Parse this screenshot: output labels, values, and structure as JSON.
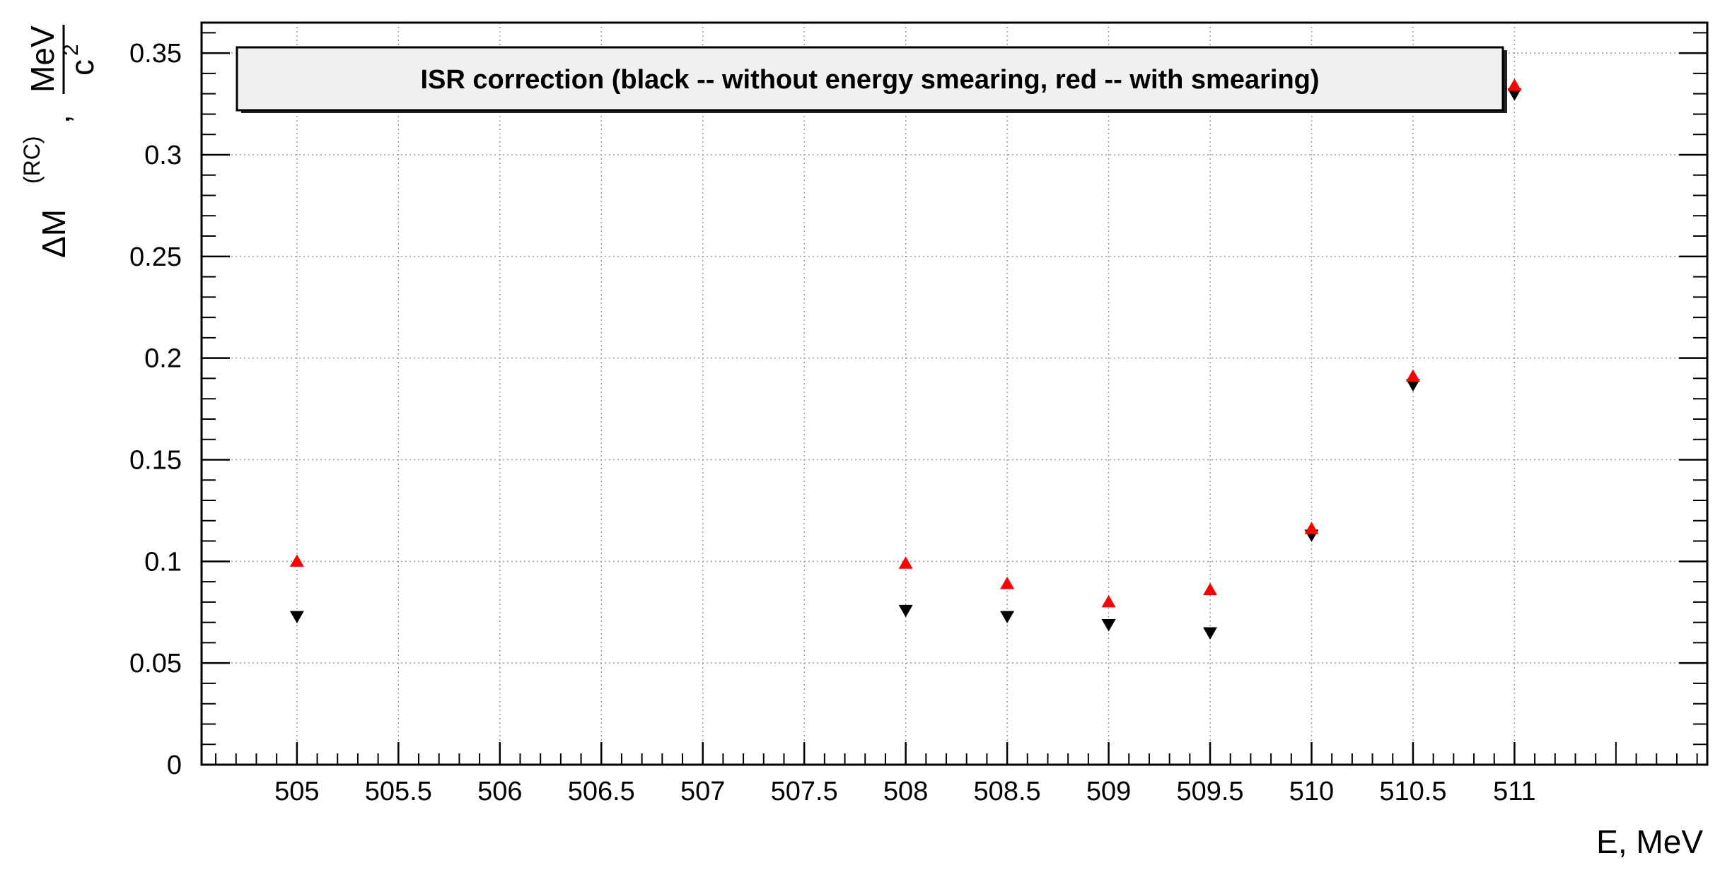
{
  "chart_data": {
    "type": "scatter",
    "title": "",
    "legend_text": "ISR correction (black -- without energy smearing,   red -- with smearing)",
    "legend_position": "top",
    "xlabel": "E, MeV",
    "ylabel": {
      "delta": "ΔM",
      "superscript": "(RC)",
      "separator": ",",
      "unit_numerator": "MeV",
      "unit_denominator": "c",
      "unit_denominator_exp": "2"
    },
    "xlim": [
      504.53,
      511.95
    ],
    "ylim": [
      0,
      0.365
    ],
    "x_ticks": [
      505,
      505.5,
      506,
      506.5,
      507,
      507.5,
      508,
      508.5,
      509,
      509.5,
      510,
      510.5,
      511
    ],
    "x_tick_labels": [
      "505",
      "505.5",
      "506",
      "506.5",
      "507",
      "507.5",
      "508",
      "508.5",
      "509",
      "509.5",
      "510",
      "510.5",
      "511"
    ],
    "y_ticks": [
      0,
      0.05,
      0.1,
      0.15,
      0.2,
      0.25,
      0.3,
      0.35
    ],
    "y_tick_labels": [
      "0",
      "0.05",
      "0.1",
      "0.15",
      "0.2",
      "0.25",
      "0.3",
      "0.35"
    ],
    "grid": true,
    "series": [
      {
        "color": "#000000",
        "marker": "triangle-down",
        "x": [
          505,
          508,
          508.5,
          509,
          509.5,
          510,
          510.5,
          511
        ],
        "y": [
          0.073,
          0.076,
          0.073,
          0.069,
          0.065,
          0.113,
          0.187,
          0.33
        ]
      },
      {
        "color": "#ff0000",
        "marker": "triangle-up",
        "x": [
          505,
          508,
          508.5,
          509,
          509.5,
          510,
          510.5,
          511
        ],
        "y": [
          0.1,
          0.099,
          0.089,
          0.08,
          0.086,
          0.116,
          0.191,
          0.334
        ]
      }
    ]
  }
}
